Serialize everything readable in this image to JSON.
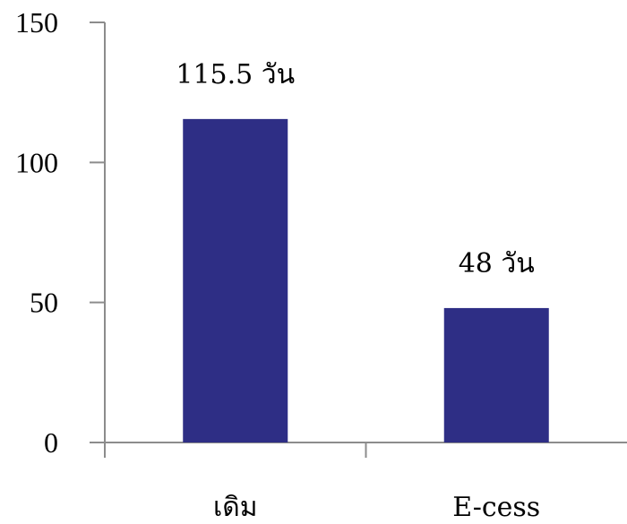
{
  "chart_data": {
    "type": "bar",
    "categories": [
      "เดิม",
      "E-cess"
    ],
    "values": [
      115.5,
      48
    ],
    "data_labels": [
      "115.5 วัน",
      "48 วัน"
    ],
    "title": "",
    "xlabel": "",
    "ylabel": "",
    "ylim": [
      0,
      150
    ],
    "yticks": [
      0,
      50,
      100,
      150
    ],
    "ytick_labels": [
      "0",
      "50",
      "100",
      "150"
    ],
    "grid": false,
    "legend": "none",
    "bar_color": "#2e2e85"
  }
}
